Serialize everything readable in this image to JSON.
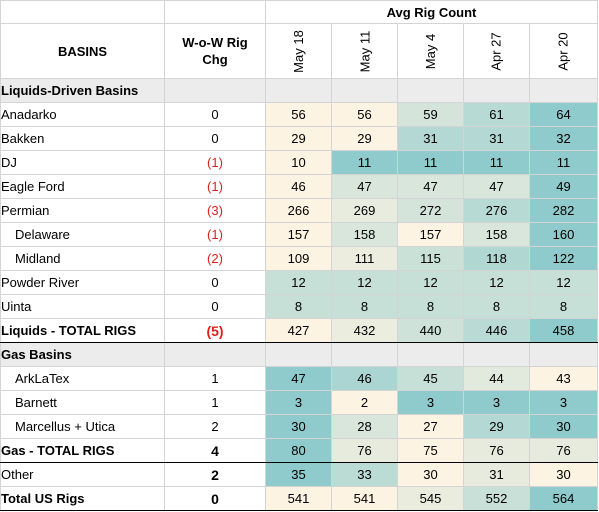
{
  "header": {
    "avg_title": "Avg Rig Count",
    "basins_label": "BASINS",
    "chg_label_line1": "W-o-W Rig",
    "chg_label_line2": "Chg",
    "weeks": [
      "May 18",
      "May 11",
      "May 4",
      "Apr 27",
      "Apr 20"
    ]
  },
  "palette": {
    "low": "#fdf3e2",
    "high": "#8fcbcc",
    "negative_text": "#e02020"
  },
  "sections": [
    {
      "title": "Liquids-Driven Basins",
      "rows": [
        {
          "name": "Anadarko",
          "chg": "0",
          "neg": false,
          "indent": false,
          "values": [
            56,
            56,
            59,
            61,
            64
          ]
        },
        {
          "name": "Bakken",
          "chg": "0",
          "neg": false,
          "indent": false,
          "values": [
            29,
            29,
            31,
            31,
            32
          ]
        },
        {
          "name": "DJ",
          "chg": "(1)",
          "neg": true,
          "indent": false,
          "values": [
            10,
            11,
            11,
            11,
            11
          ]
        },
        {
          "name": "Eagle Ford",
          "chg": "(1)",
          "neg": true,
          "indent": false,
          "values": [
            46,
            47,
            47,
            47,
            49
          ]
        },
        {
          "name": "Permian",
          "chg": "(3)",
          "neg": true,
          "indent": false,
          "values": [
            266,
            269,
            272,
            276,
            282
          ]
        },
        {
          "name": "Delaware",
          "chg": "(1)",
          "neg": true,
          "indent": true,
          "values": [
            157,
            158,
            157,
            158,
            160
          ]
        },
        {
          "name": "Midland",
          "chg": "(2)",
          "neg": true,
          "indent": true,
          "values": [
            109,
            111,
            115,
            118,
            122
          ]
        },
        {
          "name": "Powder River",
          "chg": "0",
          "neg": false,
          "indent": false,
          "values": [
            12,
            12,
            12,
            12,
            12
          ]
        },
        {
          "name": "Uinta",
          "chg": "0",
          "neg": false,
          "indent": false,
          "values": [
            8,
            8,
            8,
            8,
            8
          ]
        }
      ],
      "total": {
        "name": "Liquids - TOTAL RIGS",
        "chg": "(5)",
        "neg": true,
        "values": [
          427,
          432,
          440,
          446,
          458
        ]
      }
    },
    {
      "title": "Gas Basins",
      "rows": [
        {
          "name": "ArkLaTex",
          "chg": "1",
          "neg": false,
          "indent": true,
          "values": [
            47,
            46,
            45,
            44,
            43
          ]
        },
        {
          "name": "Barnett",
          "chg": "1",
          "neg": false,
          "indent": true,
          "values": [
            3,
            2,
            3,
            3,
            3
          ]
        },
        {
          "name": "Marcellus + Utica",
          "chg": "2",
          "neg": false,
          "indent": true,
          "values": [
            30,
            28,
            27,
            29,
            30
          ]
        }
      ],
      "total": {
        "name": "Gas - TOTAL RIGS",
        "chg": "4",
        "neg": false,
        "values": [
          80,
          76,
          75,
          76,
          76
        ]
      }
    }
  ],
  "other": {
    "name": "Other",
    "chg": "2",
    "neg": false,
    "values": [
      35,
      33,
      30,
      31,
      30
    ]
  },
  "grand_total": {
    "name": "Total US Rigs",
    "chg": "0",
    "neg": false,
    "values": [
      541,
      541,
      545,
      552,
      564
    ]
  }
}
